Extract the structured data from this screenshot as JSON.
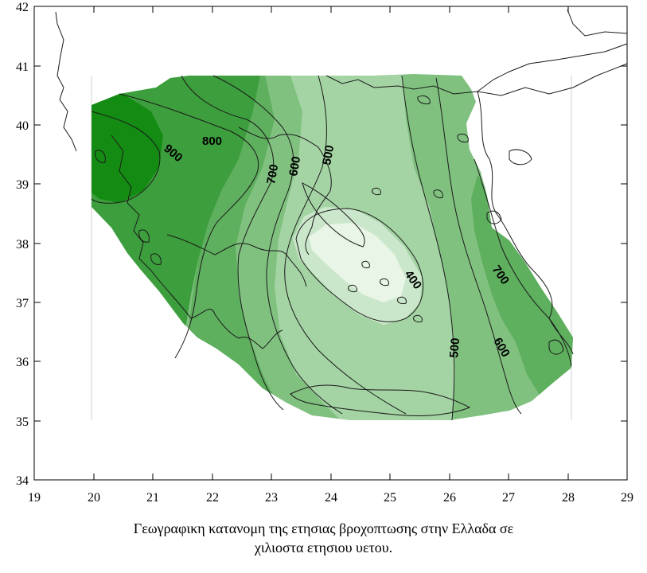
{
  "map": {
    "x_ticks": [
      "19",
      "20",
      "21",
      "22",
      "23",
      "24",
      "25",
      "26",
      "27",
      "28",
      "29"
    ],
    "y_ticks": [
      "34",
      "35",
      "36",
      "37",
      "38",
      "39",
      "40",
      "41",
      "42"
    ],
    "contour_labels": [
      "900",
      "800",
      "700",
      "600",
      "500",
      "400",
      "500",
      "600",
      "700"
    ],
    "colors": {
      "zone_900": "#148c14",
      "zone_800": "#3d9e3d",
      "zone_700": "#5eaf5e",
      "zone_600": "#80c180",
      "zone_500": "#a4d4a4",
      "zone_400": "#cbe7cb",
      "zone_min": "#e9f5e6"
    }
  },
  "caption": {
    "line1": "Γεωγραφικη κατανομη της ετησιας βροχοπτωσης στην Ελλαδα σε",
    "line2": "χιλιοστα ετησιου υετου."
  }
}
